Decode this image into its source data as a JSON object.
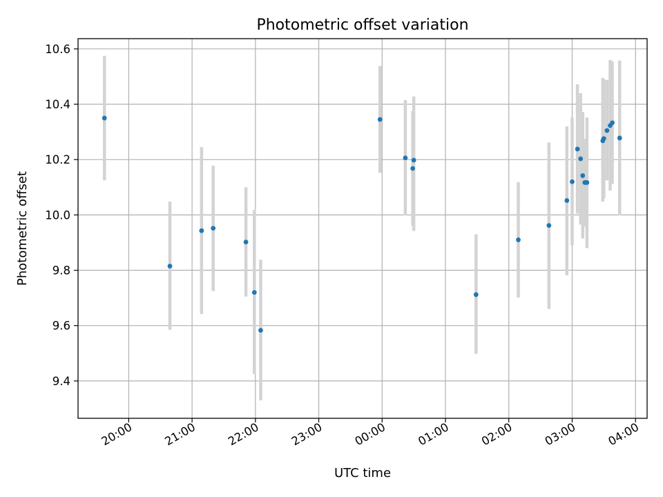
{
  "chart_data": {
    "type": "scatter",
    "title": "Photometric offset variation",
    "xlabel": "UTC time",
    "ylabel": "Photometric offset",
    "x_axis_kind": "utc-time",
    "xlim": [
      "19:12",
      "04:11"
    ],
    "ylim": [
      9.265,
      10.637
    ],
    "x_ticks": [
      "20:00",
      "21:00",
      "22:00",
      "23:00",
      "00:00",
      "01:00",
      "02:00",
      "03:00",
      "04:00"
    ],
    "y_ticks": [
      "9.4",
      "9.6",
      "9.8",
      "10.0",
      "10.2",
      "10.4",
      "10.6"
    ],
    "grid": true,
    "series": [
      {
        "marker_color": "#1f77b4",
        "errorbar_color": "#d3d3d3",
        "points": [
          {
            "x": "19:37",
            "y": 10.35,
            "ylo": 10.125,
            "yhi": 10.575
          },
          {
            "x": "20:39",
            "y": 9.815,
            "ylo": 9.585,
            "yhi": 10.048
          },
          {
            "x": "21:09",
            "y": 9.943,
            "ylo": 9.642,
            "yhi": 10.245
          },
          {
            "x": "21:20",
            "y": 9.952,
            "ylo": 9.725,
            "yhi": 10.178
          },
          {
            "x": "21:51",
            "y": 9.902,
            "ylo": 9.705,
            "yhi": 10.1
          },
          {
            "x": "21:59",
            "y": 9.72,
            "ylo": 9.425,
            "yhi": 10.018
          },
          {
            "x": "22:05",
            "y": 9.583,
            "ylo": 9.33,
            "yhi": 9.838
          },
          {
            "x": "23:58",
            "y": 10.345,
            "ylo": 10.152,
            "yhi": 10.538
          },
          {
            "x": "00:22",
            "y": 10.206,
            "ylo": 9.998,
            "yhi": 10.415
          },
          {
            "x": "00:29",
            "y": 10.168,
            "ylo": 9.96,
            "yhi": 10.375
          },
          {
            "x": "00:30",
            "y": 10.198,
            "ylo": 9.942,
            "yhi": 10.428
          },
          {
            "x": "01:29",
            "y": 9.712,
            "ylo": 9.498,
            "yhi": 9.93
          },
          {
            "x": "02:09",
            "y": 9.91,
            "ylo": 9.702,
            "yhi": 10.118
          },
          {
            "x": "02:38",
            "y": 9.962,
            "ylo": 9.66,
            "yhi": 10.262
          },
          {
            "x": "02:55",
            "y": 10.052,
            "ylo": 9.782,
            "yhi": 10.32
          },
          {
            "x": "03:00",
            "y": 10.12,
            "ylo": 9.89,
            "yhi": 10.352
          },
          {
            "x": "03:05",
            "y": 10.238,
            "ylo": 10.005,
            "yhi": 10.472
          },
          {
            "x": "03:08",
            "y": 10.203,
            "ylo": 9.965,
            "yhi": 10.44
          },
          {
            "x": "03:10",
            "y": 10.142,
            "ylo": 9.915,
            "yhi": 10.372
          },
          {
            "x": "03:12",
            "y": 10.117,
            "ylo": 9.958,
            "yhi": 10.275
          },
          {
            "x": "03:14",
            "y": 10.117,
            "ylo": 9.88,
            "yhi": 10.352
          },
          {
            "x": "03:29",
            "y": 10.268,
            "ylo": 10.048,
            "yhi": 10.495
          },
          {
            "x": "03:30",
            "y": 10.276,
            "ylo": 10.06,
            "yhi": 10.49
          },
          {
            "x": "03:33",
            "y": 10.305,
            "ylo": 10.125,
            "yhi": 10.488
          },
          {
            "x": "03:36",
            "y": 10.323,
            "ylo": 10.088,
            "yhi": 10.56
          },
          {
            "x": "03:38",
            "y": 10.333,
            "ylo": 10.112,
            "yhi": 10.555
          },
          {
            "x": "03:45",
            "y": 10.278,
            "ylo": 9.998,
            "yhi": 10.558
          }
        ]
      }
    ]
  }
}
